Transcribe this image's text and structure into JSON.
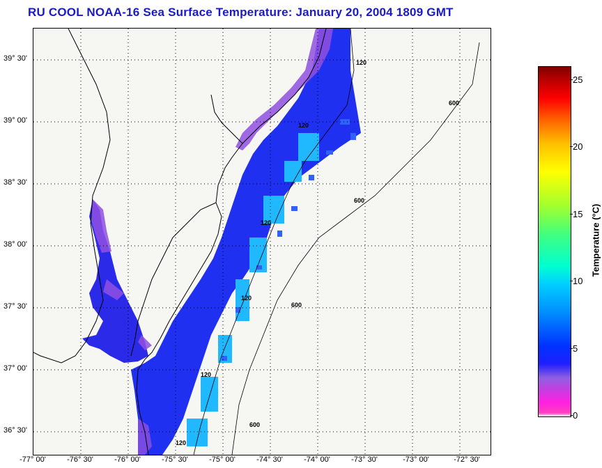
{
  "title": "RU COOL  NOAA-16  Sea Surface Temperature:  January 20, 2004 1809 GMT",
  "lat_labels": [
    "39° 30'",
    "39° 00'",
    "38° 30'",
    "38° 00'",
    "37° 30'",
    "37° 00'",
    "36° 30'"
  ],
  "lon_labels": [
    "-77° 00'",
    "-76° 30'",
    "-76° 00'",
    "-75° 30'",
    "-75° 00'",
    "-74° 30'",
    "-74° 00'",
    "-73° 30'",
    "-73° 00'",
    "-72° 30'"
  ],
  "isobaths": [
    "120",
    "120",
    "120",
    "120",
    "120",
    "120",
    "600",
    "600",
    "600",
    "600"
  ],
  "colorbar": {
    "label": "Temperature (°C)",
    "ticks": [
      "0",
      "5",
      "10",
      "15",
      "20",
      "25"
    ],
    "range": [
      0,
      26
    ]
  },
  "colors": {
    "title": "#1a1ac8",
    "land": "#f6f6f3",
    "cold_water": "#2020ff",
    "near_freezing": "#9050e0",
    "shelf_break": "#00c8ff"
  }
}
